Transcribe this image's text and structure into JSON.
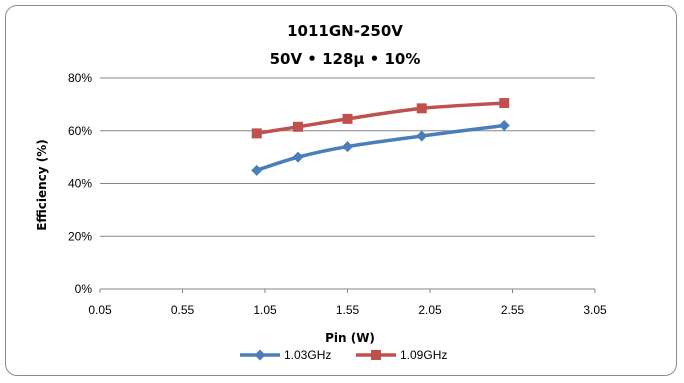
{
  "chart_data": {
    "type": "line",
    "title": "1011GN-250V",
    "subtitle": "50V • 128μ • 10%",
    "xlabel": "Pin (W)",
    "ylabel": "Efficiency (%)",
    "xlim": [
      0.05,
      3.05
    ],
    "ylim": [
      0,
      80
    ],
    "x_ticks": [
      "0.05",
      "0.55",
      "1.05",
      "1.55",
      "2.05",
      "2.55",
      "3.05"
    ],
    "y_ticks": [
      "0%",
      "20%",
      "40%",
      "60%",
      "80%"
    ],
    "grid": "horizontal",
    "legend_position": "bottom",
    "series": [
      {
        "name": "1.03GHz",
        "color": "#4a7ebb",
        "marker": "diamond",
        "x": [
          1.0,
          1.25,
          1.55,
          2.0,
          2.5
        ],
        "y": [
          45,
          50,
          54,
          58,
          62
        ]
      },
      {
        "name": "1.09GHz",
        "color": "#c0504d",
        "marker": "square",
        "x": [
          1.0,
          1.25,
          1.55,
          2.0,
          2.5
        ],
        "y": [
          59,
          61.5,
          64.5,
          68.5,
          70.5
        ]
      }
    ]
  }
}
